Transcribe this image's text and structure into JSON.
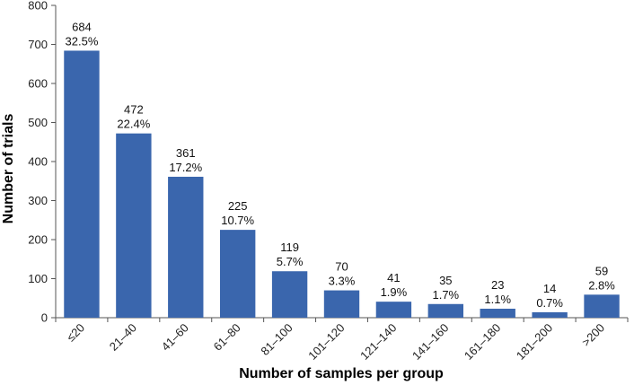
{
  "chart_data": {
    "type": "bar",
    "title": "",
    "xlabel": "Number of samples per group",
    "ylabel": "Number of trials",
    "categories": [
      "≤20",
      "21–40",
      "41–60",
      "61–80",
      "81–100",
      "101–120",
      "121–140",
      "141–160",
      "161–180",
      "181–200",
      ">200"
    ],
    "values": [
      684,
      472,
      361,
      225,
      119,
      70,
      41,
      35,
      23,
      14,
      59
    ],
    "percent_labels": [
      "32.5%",
      "22.4%",
      "17.2%",
      "10.7%",
      "5.7%",
      "3.3%",
      "1.9%",
      "1.7%",
      "1.1%",
      "0.7%",
      "2.8%"
    ],
    "ylim": [
      0,
      800
    ],
    "yticks": [
      0,
      100,
      200,
      300,
      400,
      500,
      600,
      700,
      800
    ],
    "grid": false,
    "bar_color": "#3a66ad"
  }
}
